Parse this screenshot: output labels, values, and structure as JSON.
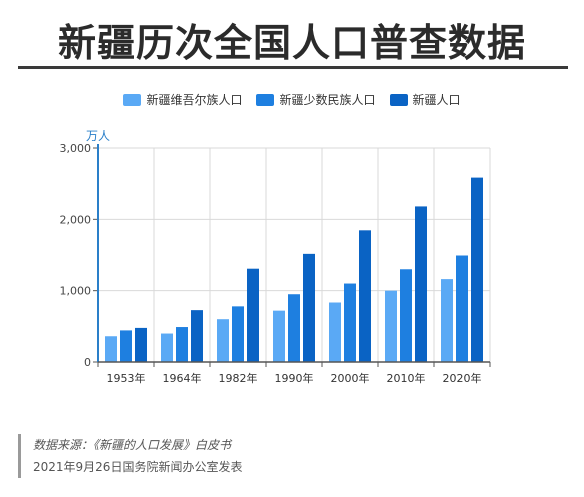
{
  "title": "新疆历次全国人口普查数据",
  "legend": [
    {
      "label": "新疆维吾尔族人口",
      "color": "#5aa9f5"
    },
    {
      "label": "新疆少数民族人口",
      "color": "#1e7fe0"
    },
    {
      "label": "新疆人口",
      "color": "#0a63c4"
    }
  ],
  "chart_data": {
    "type": "bar",
    "ylabel": "万人",
    "xlabel": "",
    "ylim": [
      0,
      3000
    ],
    "yticks": [
      0,
      1000,
      2000,
      3000
    ],
    "ytick_labels": [
      "0",
      "1,000",
      "2,000",
      "3,000"
    ],
    "grid": true,
    "legend_position": "top",
    "categories": [
      "1953年",
      "1964年",
      "1982年",
      "1990年",
      "2000年",
      "2010年",
      "2020年"
    ],
    "series": [
      {
        "name": "新疆维吾尔族人口",
        "color": "#5aa9f5",
        "values": [
          361,
          399,
          600,
          720,
          834,
          1000,
          1162
        ]
      },
      {
        "name": "新疆少数民族人口",
        "color": "#1e7fe0",
        "values": [
          443,
          490,
          780,
          950,
          1100,
          1300,
          1493
        ]
      },
      {
        "name": "新疆人口",
        "color": "#0a63c4",
        "values": [
          478,
          727,
          1308,
          1516,
          1846,
          2181,
          2585
        ]
      }
    ]
  },
  "source": {
    "line1": "数据来源：《新疆的人口发展》白皮书",
    "line2": "2021年9月26日国务院新闻办公室发表"
  }
}
